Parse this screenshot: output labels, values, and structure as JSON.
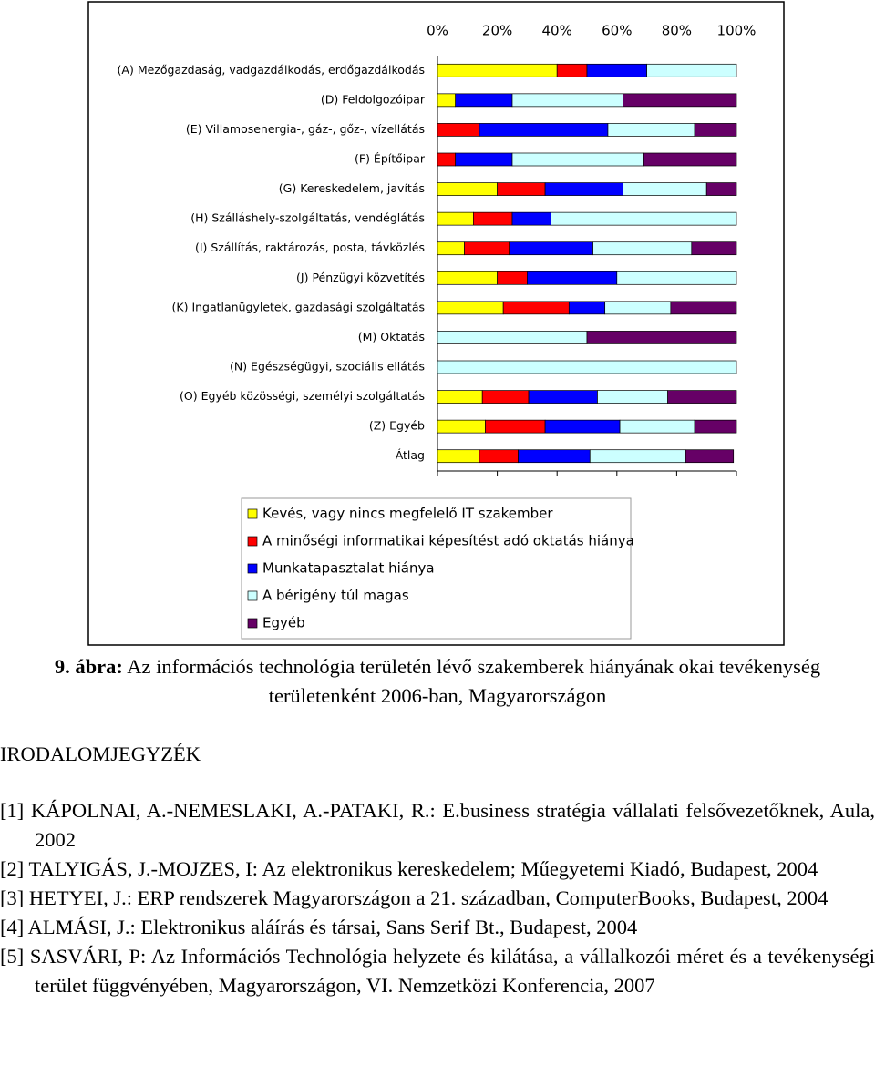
{
  "chart_data": {
    "type": "bar",
    "orientation": "horizontal",
    "stacked": true,
    "categories": [
      "(A) Mezőgazdaság, vadgazdálkodás, erdőgazdálkodás",
      "(D) Feldolgozóipar",
      "(E) Villamosenergia-, gáz-, gőz-, vízellátás",
      "(F) Építőipar",
      "(G) Kereskedelem, javítás",
      "(H) Szálláshely-szolgáltatás, vendéglátás",
      "(I) Szállítás, raktározás, posta, távközlés",
      "(J) Pénzügyi közvetítés",
      "(K) Ingatlanügyletek, gazdasági szolgáltatás",
      "(M) Oktatás",
      "(N) Egészségügyi, szociális ellátás",
      "(O) Egyéb közösségi, személyi szolgáltatás",
      "(Z) Egyéb",
      "Átlag"
    ],
    "series": [
      {
        "name": "Kevés, vagy nincs megfelelő IT szakember",
        "color": "#ffff00",
        "values": [
          40,
          6,
          0,
          0,
          20,
          12,
          9,
          20,
          22,
          0,
          0,
          15,
          16,
          14
        ]
      },
      {
        "name": "A minőségi informatikai képesítést adó oktatás hiánya",
        "color": "#ff0000",
        "values": [
          10,
          0,
          14,
          6,
          16,
          13,
          15,
          10,
          22,
          0,
          0,
          15.5,
          20,
          13
        ]
      },
      {
        "name": "Munkatapasztalat hiánya",
        "color": "#0000ff",
        "values": [
          20,
          19,
          43,
          19,
          26,
          13,
          28,
          30,
          12,
          0,
          0,
          23,
          25,
          24
        ]
      },
      {
        "name": "A bérigény túl magas",
        "color": "#ccffff",
        "values": [
          30,
          37,
          29,
          44,
          28,
          62,
          33,
          40,
          22,
          50,
          100,
          23.5,
          25,
          32
        ]
      },
      {
        "name": "Egyéb",
        "color": "#660066",
        "values": [
          0,
          38,
          14,
          31,
          10,
          0,
          15,
          0,
          22,
          50,
          0,
          23,
          14,
          16
        ]
      }
    ],
    "xlim": [
      0,
      100
    ],
    "xticks": [
      {
        "value": 0,
        "label": "0%"
      },
      {
        "value": 20,
        "label": "20%"
      },
      {
        "value": 40,
        "label": "40%"
      },
      {
        "value": 60,
        "label": "60%"
      },
      {
        "value": 80,
        "label": "80%"
      },
      {
        "value": 100,
        "label": "100%"
      }
    ]
  },
  "caption": {
    "number": "9. ábra:",
    "text": "Az információs technológia területén lévő szakemberek hiányának okai tevékenység területenként 2006-ban, Magyarországon"
  },
  "heading": "IRODALOMJEGYZÉK",
  "references": [
    "[1] KÁPOLNAI, A.-NEMESLAKI, A.-PATAKI, R.: E.business stratégia vállalati felsővezetőknek, Aula, 2002",
    "[2] TALYIGÁS, J.-MOJZES, I: Az elektronikus kereskedelem; Műegyetemi Kiadó, Budapest, 2004",
    "[3] HETYEI, J.: ERP rendszerek Magyarországon a 21. században, ComputerBooks, Budapest, 2004",
    "[4] ALMÁSI, J.: Elektronikus aláírás és társai, Sans Serif Bt., Budapest, 2004",
    "[5] SASVÁRI, P: Az Információs Technológia helyzete és kilátása, a vállalkozói méret és a tevékenységi terület függvényében, Magyarországon, VI. Nemzetközi Konferencia, 2007"
  ]
}
